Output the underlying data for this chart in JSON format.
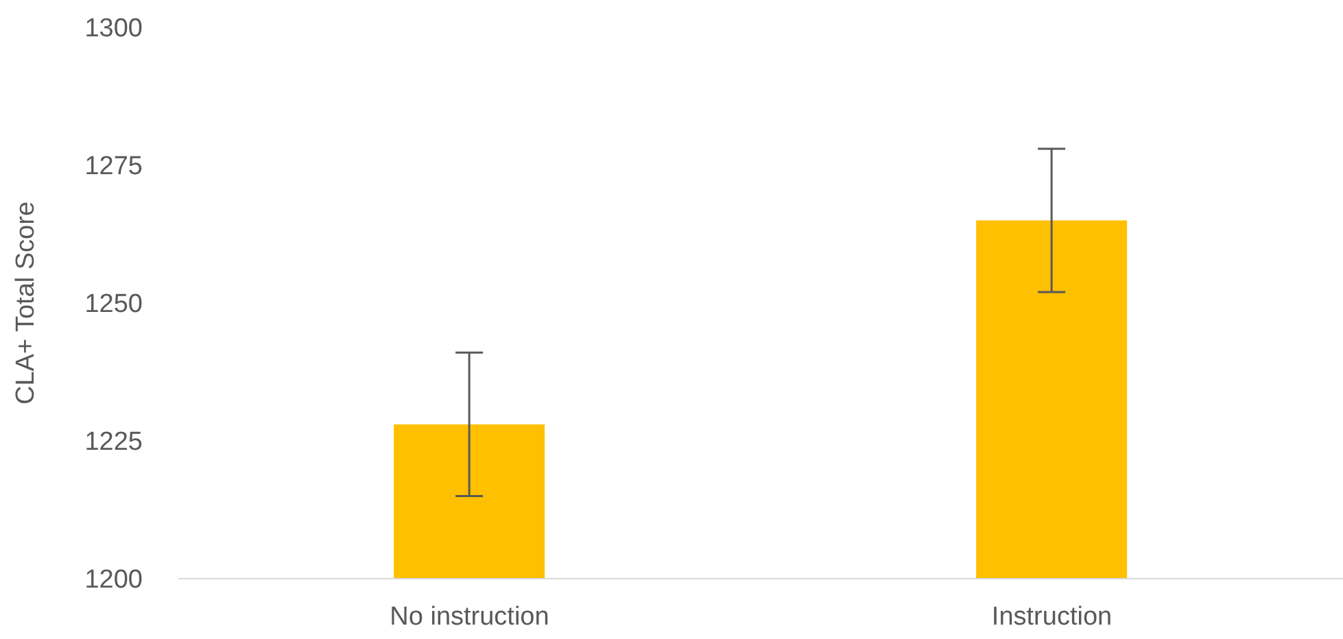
{
  "chart_data": {
    "type": "bar",
    "ylabel": "CLA+ Total Score",
    "categories": [
      "No instruction",
      "Instruction"
    ],
    "series": [
      {
        "color": "#ffc000",
        "values": [
          1228,
          1265
        ],
        "errors": [
          13,
          13
        ]
      }
    ],
    "ylim": [
      1200,
      1300
    ],
    "yticks": [
      1200,
      1225,
      1250,
      1275,
      1300
    ],
    "grid": false,
    "legend": false
  }
}
